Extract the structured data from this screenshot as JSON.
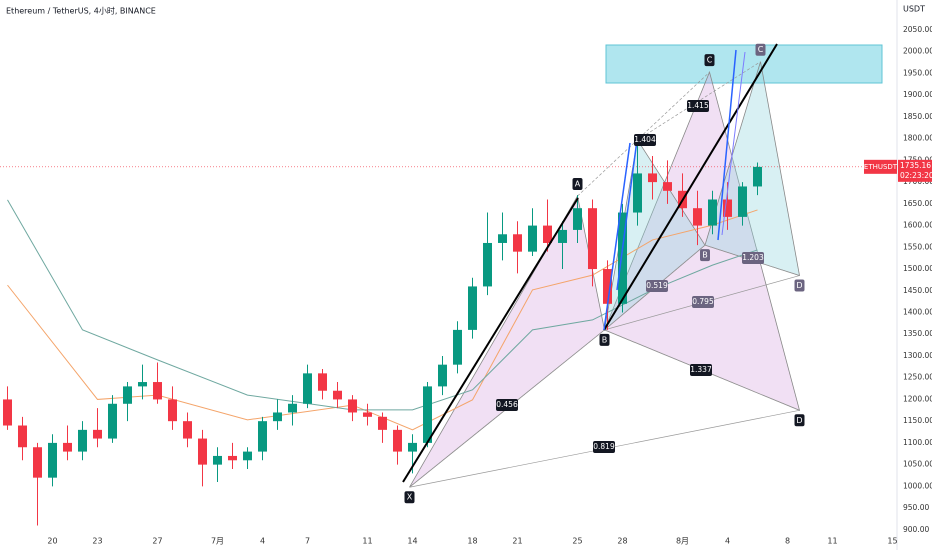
{
  "chart_data": {
    "type": "candlestick",
    "title": "Ethereum / TetherUS, 4小时, BINANCE",
    "price_unit": "USDT",
    "symbol": "ETHUSDT",
    "last_price": 1735.16,
    "countdown": "02:23:20",
    "up_color": "#089981",
    "down_color": "#f23645",
    "xlim": [
      16.5,
      76.3
    ],
    "ylim": [
      895,
      2119
    ],
    "xticks": [
      20,
      23,
      27,
      {
        "value": 31,
        "label": "7月"
      },
      {
        "value": 34,
        "label": "4"
      },
      {
        "value": 37,
        "label": "7"
      },
      {
        "value": 41,
        "label": "11"
      },
      {
        "value": 44,
        "label": "14"
      },
      {
        "value": 48,
        "label": "18"
      },
      {
        "value": 51,
        "label": "21"
      },
      {
        "value": 55,
        "label": "25"
      },
      {
        "value": 58,
        "label": "28"
      },
      {
        "value": 62,
        "label": "8月"
      },
      {
        "value": 65,
        "label": "4"
      },
      {
        "value": 69,
        "label": "8"
      },
      {
        "value": 72,
        "label": "11"
      },
      {
        "value": 76,
        "label": "15"
      }
    ],
    "yticks": [
      {
        "value": 900,
        "label": "900.00"
      },
      {
        "value": 950,
        "label": "950.00"
      },
      {
        "value": 1000,
        "label": "1000.00"
      },
      {
        "value": 1050,
        "label": "1050.00"
      },
      {
        "value": 1100,
        "label": "1100.00"
      },
      {
        "value": 1150,
        "label": "1150.00"
      },
      {
        "value": 1200,
        "label": "1200.00"
      },
      {
        "value": 1250,
        "label": "1250.00"
      },
      {
        "value": 1300,
        "label": "1300.00"
      },
      {
        "value": 1350,
        "label": "1350.00"
      },
      {
        "value": 1400,
        "label": "1400.00"
      },
      {
        "value": 1450,
        "label": "1450.00"
      },
      {
        "value": 1500,
        "label": "1500.00"
      },
      {
        "value": 1550,
        "label": "1550.00"
      },
      {
        "value": 1600,
        "label": "1600.00"
      },
      {
        "value": 1650,
        "label": "1650.00"
      },
      {
        "value": 1700,
        "label": "1700.00"
      },
      {
        "value": 1750,
        "label": "1750.00"
      },
      {
        "value": 1800,
        "label": "1800.00"
      },
      {
        "value": 1850,
        "label": "1850.00"
      },
      {
        "value": 1900,
        "label": "1900.00"
      },
      {
        "value": 1950,
        "label": "1950.00"
      },
      {
        "value": 2000,
        "label": "2000.00"
      },
      {
        "value": 2050,
        "label": "2050.00"
      }
    ],
    "x": [
      17,
      18,
      19,
      20,
      21,
      22,
      23,
      24,
      25,
      26,
      27,
      28,
      29,
      30,
      31,
      32,
      33,
      34,
      35,
      36,
      37,
      38,
      39,
      40,
      41,
      42,
      43,
      44,
      45,
      46,
      47,
      48,
      49,
      50,
      51,
      52,
      53,
      54,
      55,
      56,
      57,
      58,
      59,
      60,
      61,
      62,
      63,
      64,
      65,
      66,
      67
    ],
    "open": [
      1200,
      1140,
      1090,
      1020,
      1100,
      1080,
      1130,
      1110,
      1190,
      1230,
      1240,
      1200,
      1150,
      1110,
      1050,
      1070,
      1060,
      1080,
      1150,
      1170,
      1190,
      1260,
      1220,
      1200,
      1170,
      1160,
      1130,
      1080,
      1100,
      1230,
      1280,
      1360,
      1460,
      1560,
      1580,
      1540,
      1600,
      1560,
      1590,
      1640,
      1500,
      1420,
      1630,
      1720,
      1700,
      1680,
      1640,
      1600,
      1660,
      1620,
      1690
    ],
    "high": [
      1230,
      1160,
      1100,
      1120,
      1140,
      1150,
      1180,
      1210,
      1240,
      1280,
      1285,
      1230,
      1170,
      1130,
      1090,
      1100,
      1090,
      1160,
      1200,
      1210,
      1280,
      1270,
      1240,
      1210,
      1190,
      1170,
      1140,
      1120,
      1240,
      1300,
      1380,
      1480,
      1630,
      1630,
      1610,
      1640,
      1660,
      1610,
      1670,
      1660,
      1520,
      1650,
      1790,
      1760,
      1750,
      1720,
      1680,
      1680,
      1700,
      1700,
      1745
    ],
    "low": [
      1130,
      1060,
      910,
      1000,
      1060,
      1060,
      1090,
      1100,
      1150,
      1200,
      1190,
      1130,
      1090,
      1000,
      1010,
      1040,
      1040,
      1060,
      1130,
      1140,
      1180,
      1200,
      1180,
      1150,
      1140,
      1100,
      1050,
      1030,
      1090,
      1210,
      1260,
      1340,
      1440,
      1520,
      1490,
      1530,
      1540,
      1500,
      1560,
      1460,
      1360,
      1400,
      1600,
      1660,
      1650,
      1620,
      1555,
      1580,
      1590,
      1600,
      1670
    ],
    "close": [
      1140,
      1090,
      1020,
      1100,
      1080,
      1130,
      1110,
      1190,
      1230,
      1240,
      1200,
      1150,
      1110,
      1050,
      1070,
      1060,
      1080,
      1150,
      1170,
      1190,
      1260,
      1220,
      1200,
      1170,
      1160,
      1130,
      1080,
      1100,
      1230,
      1280,
      1360,
      1460,
      1560,
      1580,
      1540,
      1600,
      1560,
      1590,
      1640,
      1500,
      1420,
      1630,
      1720,
      1700,
      1680,
      1640,
      1600,
      1660,
      1620,
      1690,
      1735
    ],
    "moving_averages": [
      {
        "color": "#f4a46a",
        "x": [
          17,
          23,
          27,
          33,
          40,
          44,
          48,
          52,
          56,
          60,
          64,
          67
        ],
        "values": [
          1463,
          1200,
          1210,
          1153,
          1187,
          1130,
          1199,
          1452,
          1486,
          1567,
          1601,
          1636
        ]
      },
      {
        "color": "#6fa8a0",
        "x": [
          17,
          22,
          27,
          33,
          40,
          44,
          48,
          52,
          56,
          60,
          64,
          67
        ],
        "values": [
          1659,
          1360,
          1291,
          1210,
          1176,
          1176,
          1222,
          1360,
          1383,
          1452,
          1509,
          1544
        ]
      }
    ],
    "patterns": [
      {
        "color": "#d8a6e0",
        "label_color": "#131722",
        "points": {
          "label": [
            "X",
            "A",
            "B",
            "C",
            "D"
          ],
          "x": [
            43.8,
            55,
            56.8,
            63.8,
            69.8
          ],
          "y": [
            998,
            1668,
            1360,
            1953,
            1175
          ]
        },
        "ratios": [
          0.456,
          0.819,
          1.337,
          1.404,
          1.415
        ]
      },
      {
        "color": "#8fd3dc",
        "label_color": "#6b6480",
        "points": {
          "label": [
            null,
            null,
            "B",
            "C",
            "D"
          ],
          "x": [
            56.8,
            59,
            63.5,
            67.2,
            69.8
          ],
          "y": [
            1360,
            1797,
            1555,
            1977,
            1485
          ]
        },
        "ratios": [
          0.519,
          0.795,
          1.203
        ]
      }
    ]
  }
}
